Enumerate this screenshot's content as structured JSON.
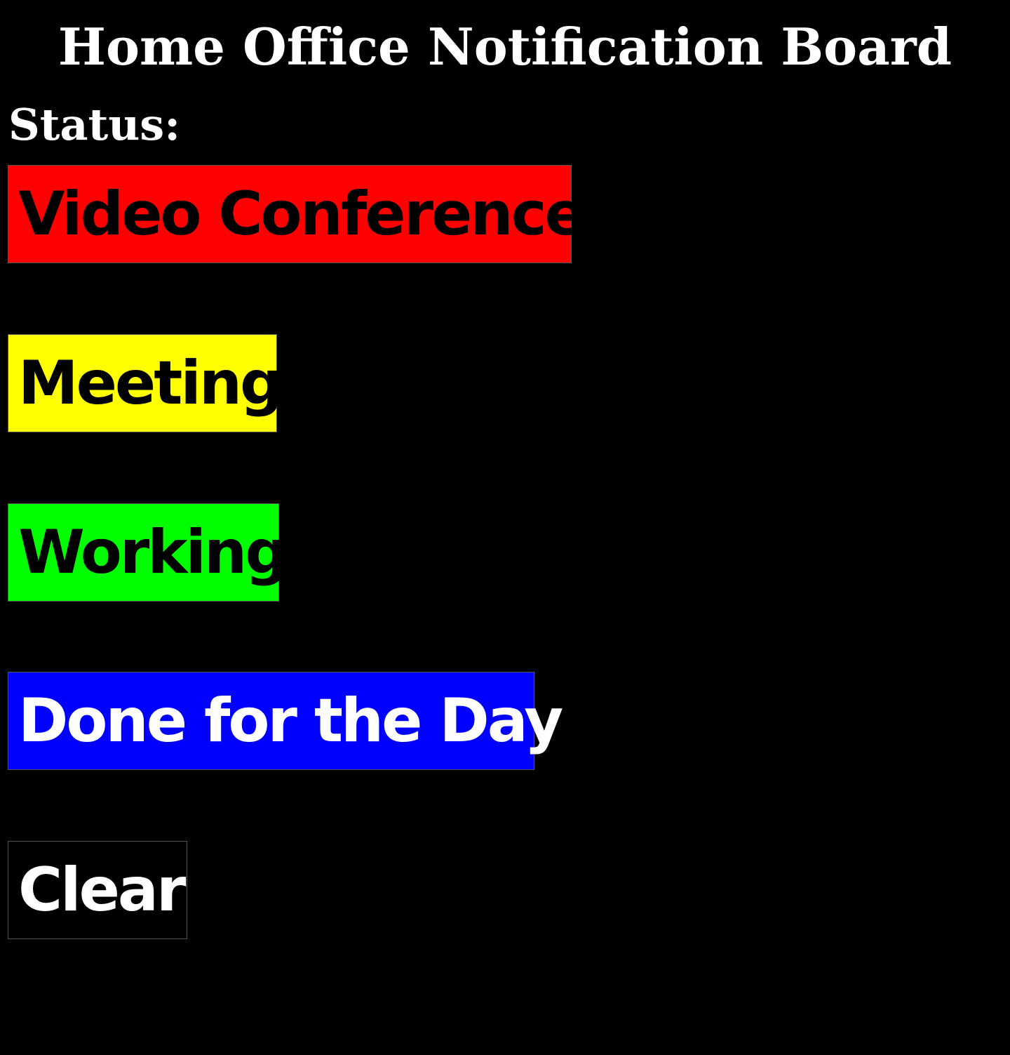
{
  "page": {
    "title": "Home Office Notification Board",
    "status_label": "Status:",
    "background_color": "#000000",
    "title_color": "#ffffff"
  },
  "status_buttons": [
    {
      "label": "Video Conference",
      "background": "#ff0000",
      "text_color": "#000000"
    },
    {
      "label": "Meeting",
      "background": "#ffff00",
      "text_color": "#000000"
    },
    {
      "label": "Working",
      "background": "#00ff00",
      "text_color": "#000000"
    },
    {
      "label": "Done for the Day",
      "background": "#0000ff",
      "text_color": "#ffffff"
    },
    {
      "label": "Clear",
      "background": "#000000",
      "text_color": "#ffffff"
    }
  ]
}
